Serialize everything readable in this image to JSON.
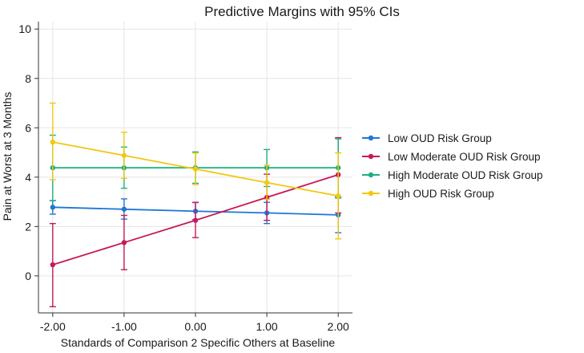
{
  "chart_data": {
    "type": "line",
    "title": "Predictive Margins with 95% CIs",
    "xlabel": "Standards of Comparison 2 Specific Others at Baseline",
    "ylabel": "Pain at Worst at 3 Months",
    "x": [
      -2,
      -1,
      0,
      1,
      2
    ],
    "x_tick_labels": [
      "-2.00",
      "-1.00",
      "0.00",
      "1.00",
      "2.00"
    ],
    "y_ticks": [
      0,
      2,
      4,
      6,
      8,
      10
    ],
    "y_tick_labels": [
      "0",
      "2",
      "4",
      "6",
      "8",
      "10"
    ],
    "xlim": [
      -2.2,
      2.2
    ],
    "ylim": [
      -1.5,
      10.3
    ],
    "grid": true,
    "legend_position": "right",
    "series": [
      {
        "name": "Low OUD Risk Group",
        "color": "#1f77d4",
        "values": [
          2.78,
          2.7,
          2.62,
          2.55,
          2.47
        ],
        "ci_low": [
          2.5,
          2.3,
          2.28,
          2.12,
          1.75
        ],
        "ci_high": [
          3.05,
          3.12,
          2.97,
          2.98,
          3.2
        ]
      },
      {
        "name": "Low Moderate OUD Risk Group",
        "color": "#c8185a",
        "values": [
          0.45,
          1.35,
          2.25,
          3.18,
          4.1
        ],
        "ci_low": [
          -1.25,
          0.25,
          1.55,
          2.25,
          2.55
        ],
        "ci_high": [
          2.12,
          2.45,
          2.98,
          4.12,
          5.6
        ]
      },
      {
        "name": "High Moderate OUD Risk Group",
        "color": "#1cb07e",
        "values": [
          4.38,
          4.38,
          4.38,
          4.38,
          4.38
        ],
        "ci_low": [
          3.05,
          3.55,
          3.75,
          3.62,
          3.15
        ],
        "ci_high": [
          5.7,
          5.22,
          5.02,
          5.12,
          5.55
        ]
      },
      {
        "name": "High OUD Risk Group",
        "color": "#f2c811",
        "values": [
          5.42,
          4.88,
          4.33,
          3.78,
          3.24
        ],
        "ci_low": [
          3.9,
          3.95,
          3.7,
          3.1,
          1.5
        ],
        "ci_high": [
          7.0,
          5.82,
          4.98,
          4.48,
          4.98
        ]
      }
    ]
  }
}
